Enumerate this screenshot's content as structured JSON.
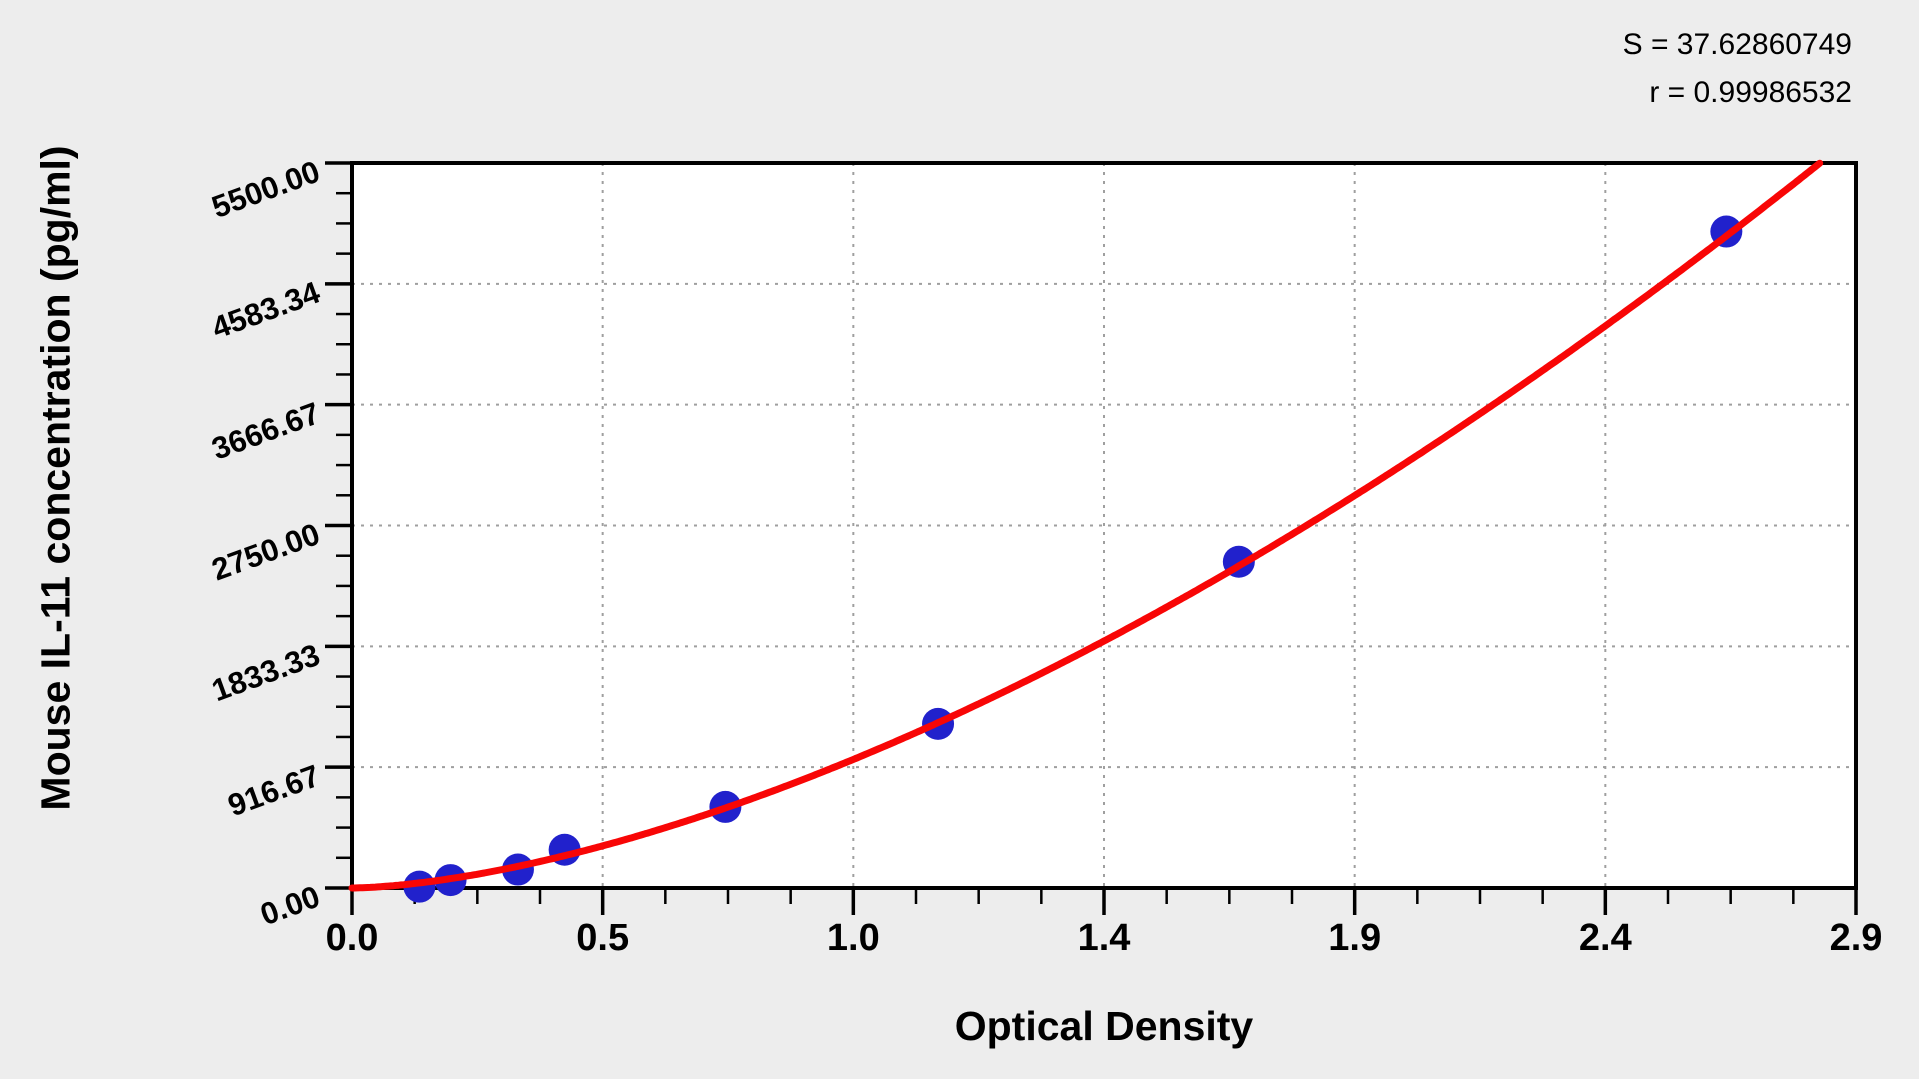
{
  "page": {
    "background": "#ededed"
  },
  "chart_data": {
    "type": "scatter",
    "subtype": "elisa-standard-curve-with-power-fit",
    "title": "",
    "xlabel": "Optical Density",
    "ylabel": "Mouse IL-11 concentration (pg/ml)",
    "annotation_s": "S = 37.62860749",
    "annotation_r": "r = 0.99986532",
    "xlim": [
      0,
      2.9
    ],
    "ylim": [
      0,
      5500
    ],
    "x_tick_labels": [
      "0.0",
      "0.5",
      "1.0",
      "1.4",
      "1.9",
      "2.4",
      "2.9"
    ],
    "y_tick_labels": [
      "0.00",
      "916.67",
      "1833.33",
      "2750.00",
      "3666.67",
      "4583.34",
      "5500.00"
    ],
    "minor_divisions_per_major": 4,
    "grid": "major-dashed",
    "legend": "none",
    "points": [
      {
        "x": 0.13,
        "y": 10
      },
      {
        "x": 0.19,
        "y": 60
      },
      {
        "x": 0.32,
        "y": 140
      },
      {
        "x": 0.41,
        "y": 290
      },
      {
        "x": 0.72,
        "y": 615
      },
      {
        "x": 1.13,
        "y": 1245
      },
      {
        "x": 1.71,
        "y": 2475
      },
      {
        "x": 2.65,
        "y": 4980
      }
    ],
    "fit_curve": {
      "model": "conc = a * OD^b",
      "a": 1030,
      "b": 1.61,
      "od_start": 0,
      "od_end_at_ymax": 2.83
    },
    "colors": {
      "curve": "#f80606",
      "points": "#2121cc",
      "grid": "#9f9f9f",
      "axis": "#000000",
      "plot_bg": "#ffffff",
      "text": "#000000"
    }
  }
}
